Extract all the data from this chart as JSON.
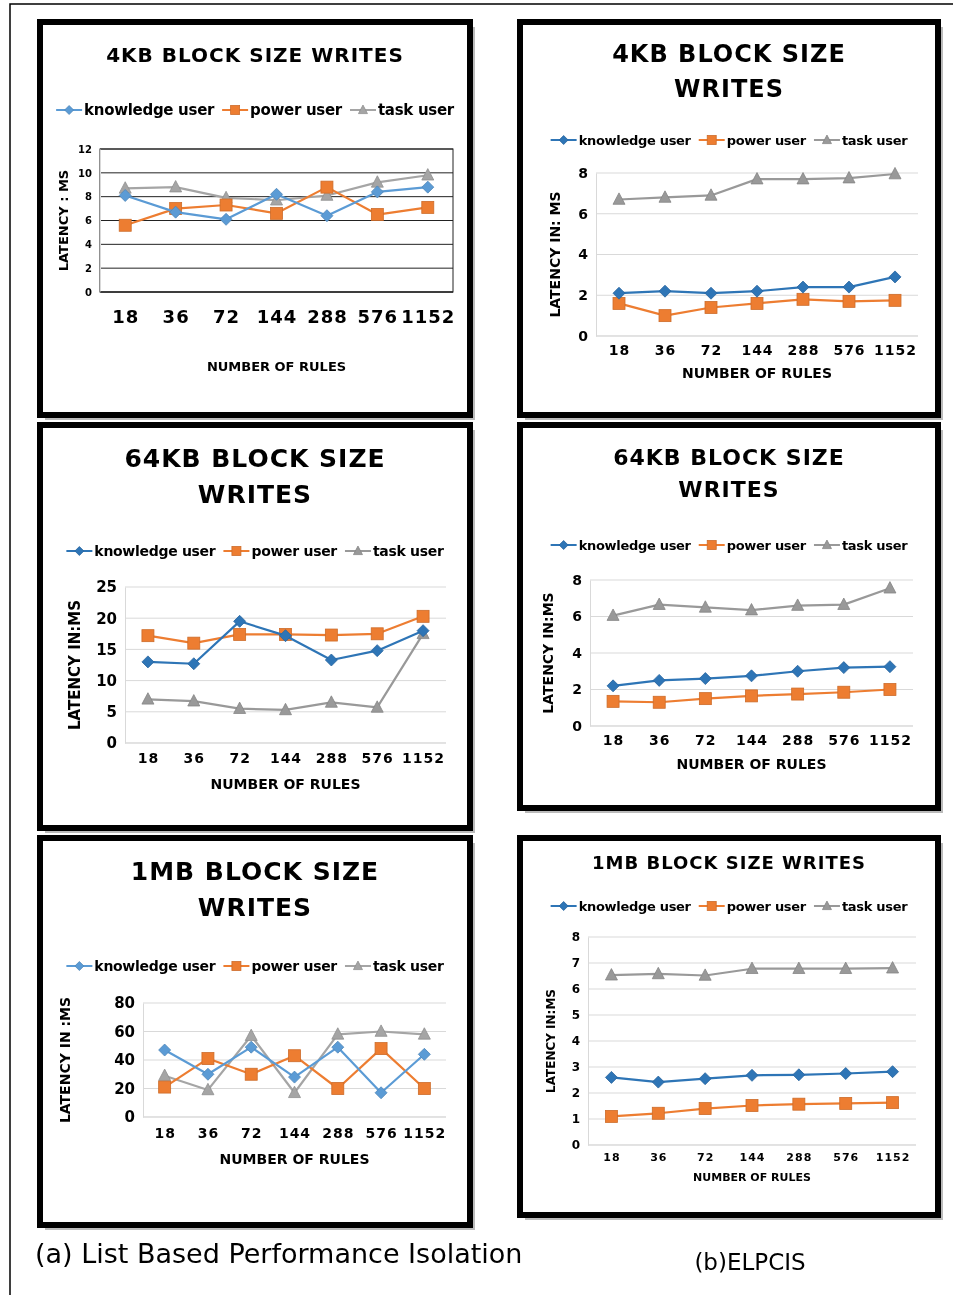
{
  "chart_data": [
    {
      "type": "line",
      "title": "4KB BLOCK SIZE WRITES",
      "xlabel": "NUMBER OF RULES",
      "ylabel": "LATENCY : MS",
      "categories": [
        "18",
        "36",
        "72",
        "144",
        "288",
        "576",
        "1152"
      ],
      "ylim": [
        0,
        12
      ],
      "yticks": [
        0,
        2,
        4,
        6,
        8,
        10,
        12
      ],
      "grid": "y",
      "legend": "top",
      "series": [
        {
          "name": "knowledge user",
          "color": "#5b9bd5",
          "marker": "diamond",
          "values": [
            8.1,
            6.7,
            6.1,
            8.2,
            6.4,
            8.4,
            8.8
          ]
        },
        {
          "name": "power user",
          "color": "#ed7d31",
          "marker": "square",
          "values": [
            5.6,
            7.0,
            7.3,
            6.6,
            8.8,
            6.5,
            7.1
          ]
        },
        {
          "name": "task user",
          "color": "#a5a5a5",
          "marker": "triangle",
          "values": [
            8.7,
            8.8,
            7.9,
            7.7,
            8.1,
            9.2,
            9.8
          ]
        }
      ]
    },
    {
      "type": "line",
      "title": "4KB BLOCK SIZE WRITES",
      "xlabel": "NUMBER OF RULES",
      "ylabel": "LATENCY IN: MS",
      "categories": [
        "18",
        "36",
        "72",
        "144",
        "288",
        "576",
        "1152"
      ],
      "ylim": [
        0,
        8
      ],
      "yticks": [
        0,
        2,
        4,
        6,
        8
      ],
      "grid": "y",
      "legend": "top",
      "series": [
        {
          "name": "knowledge user",
          "color": "#2e75b6",
          "marker": "diamond",
          "values": [
            2.1,
            2.2,
            2.1,
            2.2,
            2.4,
            2.4,
            2.9
          ]
        },
        {
          "name": "power user",
          "color": "#ed7d31",
          "marker": "square",
          "values": [
            1.6,
            1.0,
            1.4,
            1.6,
            1.8,
            1.7,
            1.75
          ]
        },
        {
          "name": "task user",
          "color": "#999999",
          "marker": "triangle",
          "values": [
            6.7,
            6.8,
            6.9,
            7.7,
            7.7,
            7.75,
            7.95
          ]
        }
      ]
    },
    {
      "type": "line",
      "title": "64KB BLOCK SIZE WRITES",
      "xlabel": "NUMBER OF RULES",
      "ylabel": "LATENCY IN:MS",
      "categories": [
        "18",
        "36",
        "72",
        "144",
        "288",
        "576",
        "1152"
      ],
      "ylim": [
        0,
        25
      ],
      "yticks": [
        0,
        5,
        10,
        15,
        20,
        25
      ],
      "grid": "y",
      "legend": "top",
      "series": [
        {
          "name": "knowledge user",
          "color": "#2e75b6",
          "marker": "diamond",
          "values": [
            13,
            12.7,
            19.5,
            17.2,
            13.3,
            14.8,
            18
          ]
        },
        {
          "name": "power user",
          "color": "#ed7d31",
          "marker": "square",
          "values": [
            17.2,
            16,
            17.4,
            17.4,
            17.3,
            17.5,
            20.3
          ]
        },
        {
          "name": "task user",
          "color": "#999999",
          "marker": "triangle",
          "values": [
            7,
            6.7,
            5.5,
            5.3,
            6.5,
            5.7,
            17.5
          ]
        }
      ]
    },
    {
      "type": "line",
      "title": "64KB BLOCK SIZE WRITES",
      "xlabel": "NUMBER OF RULES",
      "ylabel": "LATENCY IN:MS",
      "categories": [
        "18",
        "36",
        "72",
        "144",
        "288",
        "576",
        "1152"
      ],
      "ylim": [
        0,
        8
      ],
      "yticks": [
        0,
        2,
        4,
        6,
        8
      ],
      "grid": "y",
      "legend": "top",
      "series": [
        {
          "name": "knowledge user",
          "color": "#2e75b6",
          "marker": "diamond",
          "values": [
            2.2,
            2.5,
            2.6,
            2.75,
            3.0,
            3.2,
            3.25
          ]
        },
        {
          "name": "power user",
          "color": "#ed7d31",
          "marker": "square",
          "values": [
            1.35,
            1.3,
            1.5,
            1.65,
            1.75,
            1.85,
            2.0
          ]
        },
        {
          "name": "task user",
          "color": "#999999",
          "marker": "triangle",
          "values": [
            6.05,
            6.65,
            6.5,
            6.35,
            6.6,
            6.65,
            7.55
          ]
        }
      ]
    },
    {
      "type": "line",
      "title": "1MB BLOCK SIZE WRITES",
      "xlabel": "NUMBER OF RULES",
      "ylabel": "LATENCY IN :MS",
      "categories": [
        "18",
        "36",
        "72",
        "144",
        "288",
        "576",
        "1152"
      ],
      "ylim": [
        0,
        80
      ],
      "yticks": [
        0,
        20,
        40,
        60,
        80
      ],
      "grid": "y",
      "legend": "top",
      "annotations": [
        "(a) List Based Performance Isolation"
      ],
      "series": [
        {
          "name": "knowledge user",
          "color": "#5b9bd5",
          "marker": "diamond",
          "values": [
            47,
            30,
            49,
            28,
            49,
            17,
            44
          ]
        },
        {
          "name": "power user",
          "color": "#ed7d31",
          "marker": "square",
          "values": [
            21,
            41,
            30,
            43,
            20,
            48,
            20
          ]
        },
        {
          "name": "task user",
          "color": "#a5a5a5",
          "marker": "triangle",
          "values": [
            29,
            19,
            57,
            17,
            58,
            60,
            58
          ]
        }
      ]
    },
    {
      "type": "line",
      "title": "1MB BLOCK SIZE WRITES",
      "xlabel": "NUMBER OF RULES",
      "ylabel": "LATENCY IN:MS",
      "categories": [
        "18",
        "36",
        "72",
        "144",
        "288",
        "576",
        "1152"
      ],
      "ylim": [
        0,
        8
      ],
      "yticks": [
        0,
        1,
        2,
        3,
        4,
        5,
        6,
        7,
        8
      ],
      "grid": "y",
      "legend": "top",
      "annotations": [
        "(b)ELPCIS"
      ],
      "series": [
        {
          "name": "knowledge user",
          "color": "#2e75b6",
          "marker": "diamond",
          "values": [
            2.6,
            2.42,
            2.55,
            2.68,
            2.7,
            2.75,
            2.82
          ]
        },
        {
          "name": "power user",
          "color": "#ed7d31",
          "marker": "square",
          "values": [
            1.1,
            1.22,
            1.4,
            1.52,
            1.57,
            1.6,
            1.63
          ]
        },
        {
          "name": "task user",
          "color": "#999999",
          "marker": "triangle",
          "values": [
            6.53,
            6.58,
            6.52,
            6.78,
            6.78,
            6.78,
            6.8
          ]
        }
      ]
    }
  ]
}
